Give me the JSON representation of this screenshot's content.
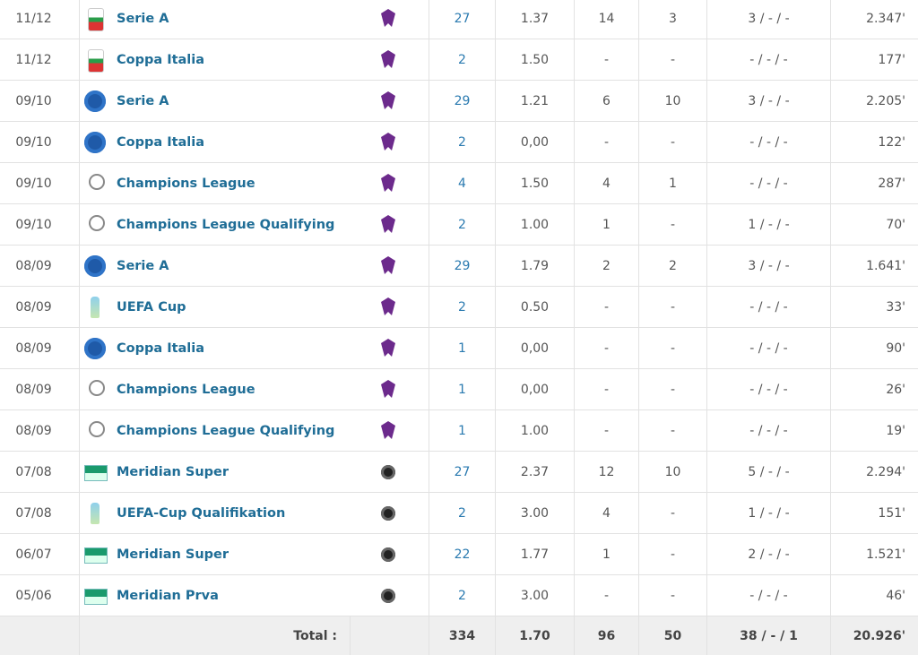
{
  "table": {
    "rows": [
      [
        "11/12",
        "Serie A",
        "27",
        "1.37",
        "14",
        "3",
        "3 / - / -",
        "2.347'"
      ],
      [
        "11/12",
        "Coppa Italia",
        "2",
        "1.50",
        "-",
        "-",
        "- / - / -",
        "177'"
      ],
      [
        "09/10",
        "Serie A",
        "29",
        "1.21",
        "6",
        "10",
        "3 / - / -",
        "2.205'"
      ],
      [
        "09/10",
        "Coppa Italia",
        "2",
        "0,00",
        "-",
        "-",
        "- / - / -",
        "122'"
      ],
      [
        "09/10",
        "Champions League",
        "4",
        "1.50",
        "4",
        "1",
        "- / - / -",
        "287'"
      ],
      [
        "09/10",
        "Champions League Qualifying",
        "2",
        "1.00",
        "1",
        "-",
        "1 / - / -",
        "70'"
      ],
      [
        "08/09",
        "Serie A",
        "29",
        "1.79",
        "2",
        "2",
        "3 / - / -",
        "1.641'"
      ],
      [
        "08/09",
        "UEFA Cup",
        "2",
        "0.50",
        "-",
        "-",
        "- / - / -",
        "33'"
      ],
      [
        "08/09",
        "Coppa Italia",
        "1",
        "0,00",
        "-",
        "-",
        "- / - / -",
        "90'"
      ],
      [
        "08/09",
        "Champions League",
        "1",
        "0,00",
        "-",
        "-",
        "- / - / -",
        "26'"
      ],
      [
        "08/09",
        "Champions League Qualifying",
        "1",
        "1.00",
        "-",
        "-",
        "- / - / -",
        "19'"
      ],
      [
        "07/08",
        "Meridian Super",
        "27",
        "2.37",
        "12",
        "10",
        "5 / - / -",
        "2.294'"
      ],
      [
        "07/08",
        "UEFA-Cup Qualifikation",
        "2",
        "3.00",
        "4",
        "-",
        "1 / - / -",
        "151'"
      ],
      [
        "06/07",
        "Meridian Super",
        "22",
        "1.77",
        "1",
        "-",
        "2 / - / -",
        "1.521'"
      ],
      [
        "05/06",
        "Meridian Prva",
        "2",
        "3.00",
        "-",
        "-",
        "- / - / -",
        "46'"
      ]
    ],
    "total": {
      "label": "Total :",
      "apps": "334",
      "ppm": "1.70",
      "goals": "96",
      "assists": "50",
      "cards": "38 / - / 1",
      "minutes": "20.926'"
    }
  }
}
